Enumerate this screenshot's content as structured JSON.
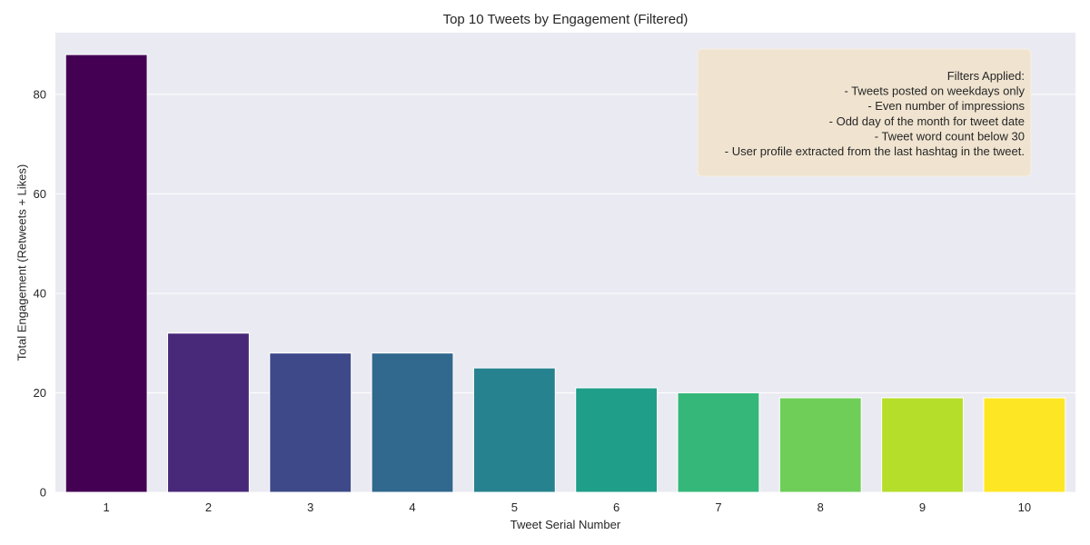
{
  "chart_data": {
    "type": "bar",
    "title": "Top 10 Tweets by Engagement (Filtered)",
    "xlabel": "Tweet Serial Number",
    "ylabel": "Total Engagement (Retweets + Likes)",
    "categories": [
      "1",
      "2",
      "3",
      "4",
      "5",
      "6",
      "7",
      "8",
      "9",
      "10"
    ],
    "values": [
      88,
      32,
      28,
      28,
      25,
      21,
      20,
      19,
      19,
      19
    ],
    "ylim": [
      0,
      92.4
    ],
    "yticks": [
      "0",
      "20",
      "40",
      "60",
      "80"
    ],
    "grid": true,
    "colors": [
      "#440154",
      "#482878",
      "#3e4989",
      "#31688e",
      "#26828e",
      "#1f9e89",
      "#35b779",
      "#6ece58",
      "#b5de2b",
      "#fde725"
    ],
    "background": "#eaeaf2",
    "annotation": {
      "lines": [
        "Filters Applied:",
        "- Tweets posted on weekdays only",
        "- Even number of impressions",
        "- Odd day of the month for tweet date",
        "- Tweet word count below 30",
        "- User profile extracted from the last hashtag in the tweet."
      ],
      "placement": "top-right",
      "box_color": "#f0e4d0"
    }
  }
}
